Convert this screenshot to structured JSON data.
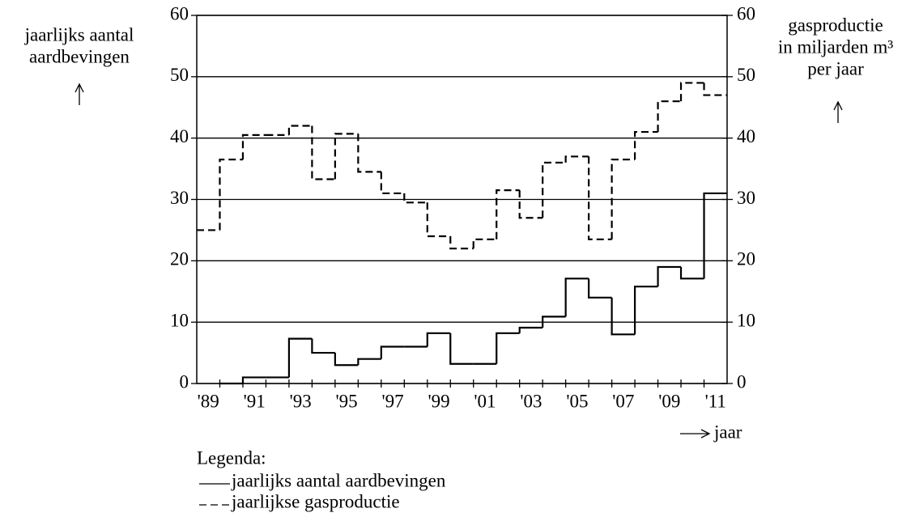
{
  "chart_data": {
    "type": "step",
    "y_label": [
      "jaarlijks aantal",
      "aardbevingen"
    ],
    "y2_label": [
      "gasproductie",
      "in miljarden m³",
      "per jaar"
    ],
    "x_label": "jaar",
    "legend_title": "Legenda:",
    "categories": [
      "'89",
      null,
      "'91",
      null,
      "'93",
      null,
      "'95",
      null,
      "'97",
      null,
      "'99",
      null,
      "'01",
      null,
      "'03",
      null,
      "'05",
      null,
      "'07",
      null,
      "'09",
      null,
      "'11"
    ],
    "series": [
      {
        "name": "jaarlijks aantal aardbevingen",
        "color": "#000000",
        "line_style": "solid",
        "values": [
          null,
          0,
          1,
          1,
          7.3,
          5,
          3,
          4,
          6,
          6,
          8.2,
          3.2,
          3.2,
          8.2,
          9.1,
          10.9,
          17.1,
          14,
          8,
          15.8,
          19,
          17.1,
          31
        ]
      },
      {
        "name": "jaarlijkse gasproductie",
        "color": "#000000",
        "line_style": "dashed",
        "axis": "y2",
        "values": [
          25,
          36.5,
          40.5,
          40.5,
          42,
          33.3,
          40.7,
          34.5,
          31,
          29.5,
          24,
          22,
          23.5,
          31.5,
          27,
          36,
          37,
          23.5,
          36.5,
          41,
          46,
          49,
          47
        ]
      }
    ],
    "ylim": [
      0,
      60
    ],
    "yticks": [
      0,
      10,
      20,
      30,
      40,
      50,
      60
    ],
    "y2lim": [
      0,
      60
    ],
    "y2ticks": [
      0,
      10,
      20,
      30,
      40,
      50,
      60
    ],
    "grid": true
  }
}
